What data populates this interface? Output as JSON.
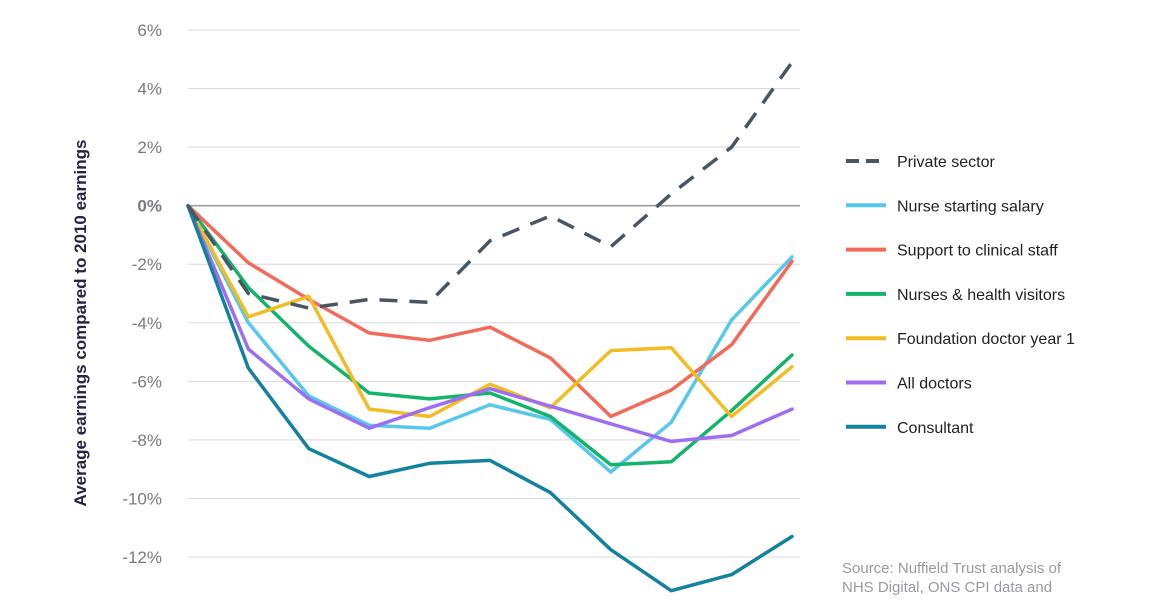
{
  "chart_data": {
    "type": "line",
    "ylabel": "Average earnings compared to 2010 earnings",
    "ylim": [
      -12,
      6
    ],
    "y_ticks": [
      {
        "value": 6,
        "label": "6%"
      },
      {
        "value": 4,
        "label": "4%"
      },
      {
        "value": 2,
        "label": "2%"
      },
      {
        "value": 0,
        "label": "0%"
      },
      {
        "value": -2,
        "label": "-2%"
      },
      {
        "value": -4,
        "label": "-4%"
      },
      {
        "value": -6,
        "label": "-6%"
      },
      {
        "value": -8,
        "label": "-8%"
      },
      {
        "value": -10,
        "label": "-10%"
      },
      {
        "value": -12,
        "label": "-12%"
      }
    ],
    "grid": true,
    "legend_position": "right",
    "series": [
      {
        "name": "Private sector",
        "color": "#4a5563",
        "dashed": true,
        "values": [
          0,
          -3.0,
          -3.5,
          -3.2,
          -3.3,
          -1.2,
          -0.35,
          -1.4,
          0.4,
          2.0,
          4.9
        ]
      },
      {
        "name": "Nurse starting salary",
        "color": "#55c8ec",
        "dashed": false,
        "values": [
          0,
          -4.0,
          -6.5,
          -7.5,
          -7.6,
          -6.8,
          -7.3,
          -9.1,
          -7.4,
          -3.9,
          -1.75
        ]
      },
      {
        "name": "Support to clinical staff",
        "color": "#f26a5a",
        "dashed": false,
        "values": [
          0,
          -1.95,
          -3.2,
          -4.35,
          -4.6,
          -4.15,
          -5.2,
          -7.2,
          -6.3,
          -4.75,
          -1.9
        ]
      },
      {
        "name": "Nurses & health visitors",
        "color": "#14b36b",
        "dashed": false,
        "values": [
          0,
          -2.8,
          -4.8,
          -6.4,
          -6.6,
          -6.4,
          -7.2,
          -8.85,
          -8.75,
          -7.0,
          -5.1
        ]
      },
      {
        "name": "Foundation doctor year 1",
        "color": "#f2bc22",
        "dashed": false,
        "values": [
          0,
          -3.8,
          -3.1,
          -6.95,
          -7.2,
          -6.1,
          -6.9,
          -4.95,
          -4.85,
          -7.2,
          -5.5
        ]
      },
      {
        "name": "All doctors",
        "color": "#9d6ef2",
        "dashed": false,
        "values": [
          0,
          -4.9,
          -6.6,
          -7.6,
          -6.9,
          -6.25,
          -6.85,
          -7.45,
          -8.05,
          -7.85,
          -6.95
        ]
      },
      {
        "name": "Consultant",
        "color": "#12829e",
        "dashed": false,
        "values": [
          0,
          -5.55,
          -8.3,
          -9.25,
          -8.8,
          -8.7,
          -9.8,
          -11.75,
          -13.15,
          -12.6,
          -11.3
        ]
      }
    ]
  },
  "source": {
    "line1": "Source: Nuffield Trust analysis of",
    "line2": "NHS Digital, ONS CPI data and"
  }
}
